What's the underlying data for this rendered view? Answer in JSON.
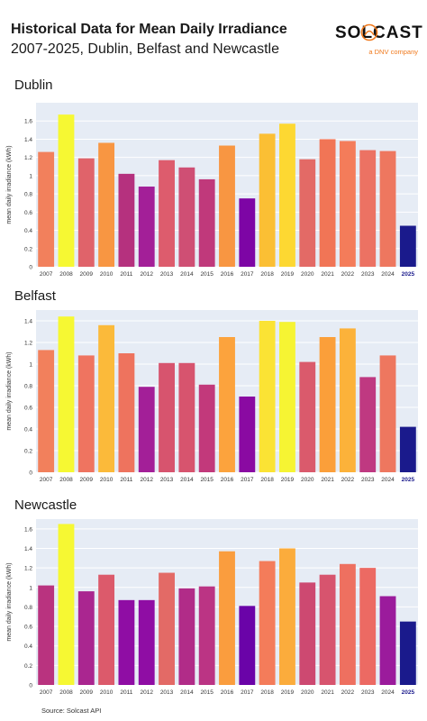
{
  "header": {
    "title": "Historical Data for Mean Daily Irradiance",
    "subtitle": "2007-2025, Dublin, Belfast and Newcastle"
  },
  "logo": {
    "name": "SOLCAST",
    "tagline": "a DNV company"
  },
  "source": "Source: Solcast API",
  "chart_data": [
    {
      "type": "bar",
      "title": "Dublin",
      "ylabel": "mean daily irradiance (kWh)",
      "xlabel": "",
      "ylim": [
        0,
        1.8
      ],
      "yticks": [
        0,
        0.2,
        0.4,
        0.6,
        0.8,
        1,
        1.2,
        1.4,
        1.6
      ],
      "grid": true,
      "categories": [
        "2007",
        "2008",
        "2009",
        "2010",
        "2011",
        "2012",
        "2013",
        "2014",
        "2015",
        "2016",
        "2017",
        "2018",
        "2019",
        "2020",
        "2021",
        "2022",
        "2023",
        "2024",
        "2025"
      ],
      "values": [
        1.26,
        1.67,
        1.19,
        1.36,
        1.02,
        0.88,
        1.17,
        1.09,
        0.96,
        1.33,
        0.75,
        1.46,
        1.57,
        1.18,
        1.4,
        1.38,
        1.28,
        1.27,
        0.45
      ],
      "bar_colors": [
        "#f2805c",
        "#f6f833",
        "#e0636a",
        "#f89642",
        "#b5317e",
        "#a31f98",
        "#dd5c6d",
        "#cf4f74",
        "#c0397b",
        "#f89642",
        "#7d05a5",
        "#fbbf34",
        "#fdd832",
        "#e36a66",
        "#f17556",
        "#f47c5a",
        "#ec7263",
        "#ee775f",
        "#1a1a8c"
      ],
      "highlight_category": "2025"
    },
    {
      "type": "bar",
      "title": "Belfast",
      "ylabel": "mean daily irradiance (kWh)",
      "xlabel": "",
      "ylim": [
        0,
        1.5
      ],
      "yticks": [
        0,
        0.2,
        0.4,
        0.6,
        0.8,
        1,
        1.2,
        1.4
      ],
      "grid": true,
      "categories": [
        "2007",
        "2008",
        "2009",
        "2010",
        "2011",
        "2012",
        "2013",
        "2014",
        "2015",
        "2016",
        "2017",
        "2018",
        "2019",
        "2020",
        "2021",
        "2022",
        "2023",
        "2024",
        "2025"
      ],
      "values": [
        1.13,
        1.44,
        1.08,
        1.36,
        1.1,
        0.79,
        1.01,
        1.01,
        0.81,
        1.25,
        0.7,
        1.4,
        1.39,
        1.02,
        1.25,
        1.33,
        0.88,
        1.08,
        0.42
      ],
      "bar_colors": [
        "#f2805c",
        "#f6f833",
        "#ef7460",
        "#fbba3a",
        "#ee735e",
        "#a31f98",
        "#d7546e",
        "#d7546e",
        "#c2397b",
        "#fca33d",
        "#8a0aa2",
        "#fbe334",
        "#f6f433",
        "#da5a6c",
        "#fb9f3a",
        "#fcb23a",
        "#bf3981",
        "#ee775f",
        "#1a1a8c"
      ],
      "highlight_category": "2025"
    },
    {
      "type": "bar",
      "title": "Newcastle",
      "ylabel": "mean daily irradiance (kWh)",
      "xlabel": "",
      "ylim": [
        0,
        1.7
      ],
      "yticks": [
        0,
        0.2,
        0.4,
        0.6,
        0.8,
        1,
        1.2,
        1.4,
        1.6
      ],
      "grid": true,
      "categories": [
        "2007",
        "2008",
        "2009",
        "2010",
        "2011",
        "2012",
        "2013",
        "2014",
        "2015",
        "2016",
        "2017",
        "2018",
        "2019",
        "2020",
        "2021",
        "2022",
        "2023",
        "2024",
        "2025"
      ],
      "values": [
        1.02,
        1.65,
        0.96,
        1.13,
        0.87,
        0.87,
        1.15,
        0.99,
        1.01,
        1.37,
        0.81,
        1.27,
        1.4,
        1.05,
        1.13,
        1.24,
        1.2,
        0.91,
        0.65
      ],
      "bar_colors": [
        "#b9337f",
        "#f6f833",
        "#aa2690",
        "#dc5a6b",
        "#8f0da4",
        "#8f0da4",
        "#e36a66",
        "#b12c88",
        "#bb3484",
        "#fa9d3e",
        "#6a03a8",
        "#f47c5a",
        "#fbac3c",
        "#cd4971",
        "#d7546e",
        "#ee7060",
        "#ec6a63",
        "#9b1b9c",
        "#1a1a8c"
      ],
      "highlight_category": "2025"
    }
  ]
}
